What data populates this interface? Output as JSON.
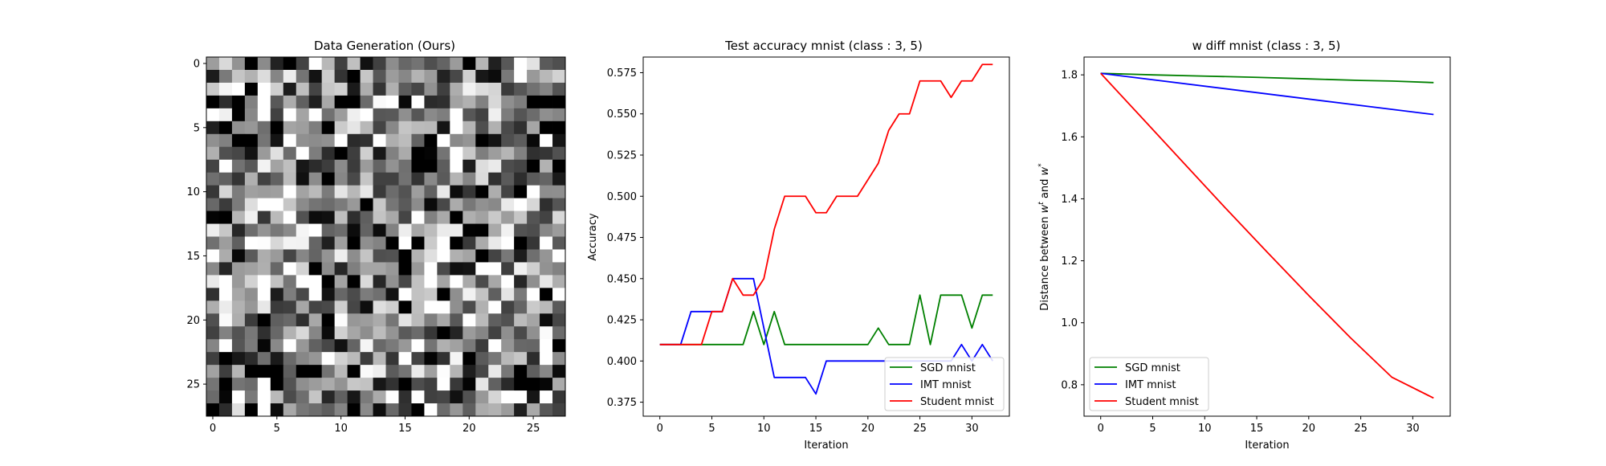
{
  "chart_data": [
    {
      "type": "heatmap",
      "title": "Data Generation (Ours)",
      "colormap": "gray",
      "xlim": [
        -0.5,
        27.5
      ],
      "ylim": [
        27.5,
        -0.5
      ],
      "xticks": [
        "0",
        "5",
        "10",
        "15",
        "20",
        "25"
      ],
      "yticks": [
        "0",
        "5",
        "10",
        "15",
        "20",
        "25"
      ],
      "value_range": [
        0,
        1
      ],
      "seed": 1337
    },
    {
      "type": "line",
      "title": "Test accuracy mnist (class : 3, 5)",
      "xlabel": "Iteration",
      "ylabel": "Accuracy",
      "xlim": [
        -1.6,
        33.6
      ],
      "ylim": [
        0.3665,
        0.5845
      ],
      "xticks": [
        "0",
        "5",
        "10",
        "15",
        "20",
        "25",
        "30"
      ],
      "yticks": [
        "0.375",
        "0.400",
        "0.425",
        "0.450",
        "0.475",
        "0.500",
        "0.525",
        "0.550",
        "0.575"
      ],
      "legend_position": "lower-right",
      "x": [
        0,
        1,
        2,
        3,
        4,
        5,
        6,
        7,
        8,
        9,
        10,
        11,
        12,
        13,
        14,
        15,
        16,
        17,
        18,
        19,
        20,
        21,
        22,
        23,
        24,
        25,
        26,
        27,
        28,
        29,
        30,
        31,
        32
      ],
      "series": [
        {
          "name": "SGD mnist",
          "color": "#008000",
          "values": [
            0.41,
            0.41,
            0.41,
            0.41,
            0.41,
            0.41,
            0.41,
            0.41,
            0.41,
            0.43,
            0.41,
            0.43,
            0.41,
            0.41,
            0.41,
            0.41,
            0.41,
            0.41,
            0.41,
            0.41,
            0.41,
            0.42,
            0.41,
            0.41,
            0.41,
            0.44,
            0.41,
            0.44,
            0.44,
            0.44,
            0.42,
            0.44,
            0.44
          ]
        },
        {
          "name": "IMT mnist",
          "color": "#0000ff",
          "values": [
            0.41,
            0.41,
            0.41,
            0.43,
            0.43,
            0.43,
            0.43,
            0.45,
            0.45,
            0.45,
            0.42,
            0.39,
            0.39,
            0.39,
            0.39,
            0.38,
            0.4,
            0.4,
            0.4,
            0.4,
            0.4,
            0.4,
            0.4,
            0.4,
            0.4,
            0.4,
            0.4,
            0.4,
            0.4,
            0.41,
            0.4,
            0.41,
            0.4
          ]
        },
        {
          "name": "Student mnist",
          "color": "#ff0000",
          "values": [
            0.41,
            0.41,
            0.41,
            0.41,
            0.41,
            0.43,
            0.43,
            0.45,
            0.44,
            0.44,
            0.45,
            0.48,
            0.5,
            0.5,
            0.5,
            0.49,
            0.49,
            0.5,
            0.5,
            0.5,
            0.51,
            0.52,
            0.54,
            0.55,
            0.55,
            0.57,
            0.57,
            0.57,
            0.56,
            0.57,
            0.57,
            0.58,
            0.58
          ]
        }
      ]
    },
    {
      "type": "line",
      "title": "w diff mnist (class : 3, 5)",
      "xlabel": "Iteration",
      "ylabel": "Distance between w^t and w^*",
      "xlim": [
        -1.6,
        33.6
      ],
      "ylim": [
        0.6985,
        1.8575
      ],
      "xticks": [
        "0",
        "5",
        "10",
        "15",
        "20",
        "25",
        "30"
      ],
      "yticks": [
        "0.8",
        "1.0",
        "1.2",
        "1.4",
        "1.6",
        "1.8"
      ],
      "legend_position": "lower-left",
      "x": [
        0,
        32
      ],
      "series": [
        {
          "name": "SGD mnist",
          "color": "#008000",
          "x": [
            0,
            5,
            10,
            15,
            20,
            25,
            28,
            32
          ],
          "values": [
            1.805,
            1.8,
            1.796,
            1.792,
            1.787,
            1.782,
            1.78,
            1.775
          ]
        },
        {
          "name": "IMT mnist",
          "color": "#0000ff",
          "x": [
            0,
            32
          ],
          "values": [
            1.805,
            1.672
          ]
        },
        {
          "name": "Student mnist",
          "color": "#ff0000",
          "x": [
            0,
            4,
            8,
            12,
            16,
            20,
            24,
            28,
            32
          ],
          "values": [
            1.805,
            1.66,
            1.515,
            1.37,
            1.228,
            1.088,
            0.952,
            0.824,
            0.757
          ]
        }
      ]
    }
  ]
}
